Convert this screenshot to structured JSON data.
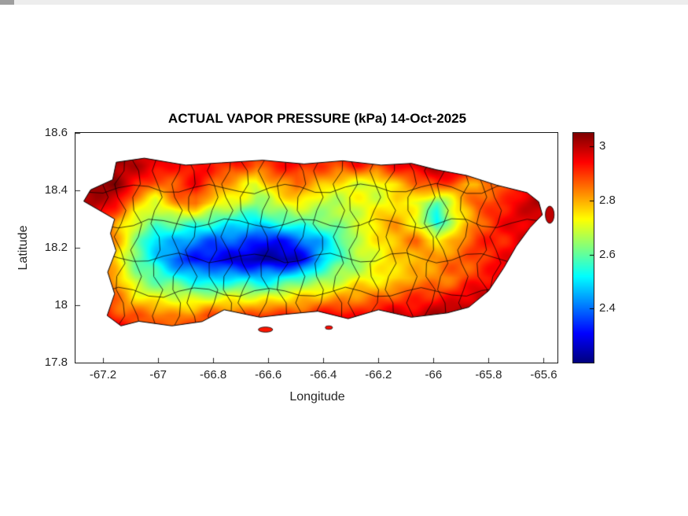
{
  "chart_data": {
    "type": "heatmap",
    "subtype": "geographic-filled-contour",
    "region": "Puerto Rico",
    "title": "ACTUAL VAPOR PRESSURE (kPa) 14-Oct-2025",
    "units": "kPa",
    "date": "14-Oct-2025",
    "xlabel": "Longitude",
    "ylabel": "Latitude",
    "xlim": [
      -67.3,
      -65.55
    ],
    "ylim": [
      17.8,
      18.6
    ],
    "grid_lines": false,
    "xticks": {
      "values": [
        -67.2,
        -67,
        -66.8,
        -66.6,
        -66.4,
        -66.2,
        -66,
        -65.8,
        -65.6
      ],
      "labels": [
        "-67.2",
        "-67",
        "-66.8",
        "-66.6",
        "-66.4",
        "-66.2",
        "-66",
        "-65.8",
        "-65.6"
      ]
    },
    "yticks": {
      "values": [
        18.6,
        18.4,
        18.2,
        18,
        17.8
      ],
      "labels": [
        "18.6",
        "18.4",
        "18.2",
        "18",
        "17.8"
      ]
    },
    "colorbar": {
      "position": "right",
      "colormap": "jet",
      "clim": [
        2.2,
        3.05
      ],
      "ticks": [
        3,
        2.8,
        2.6,
        2.4
      ],
      "labels": [
        "3",
        "2.8",
        "2.6",
        "2.4"
      ]
    },
    "municipal_boundaries": true,
    "grid": {
      "description": "vapor pressure (kPa) sampled on lon/lat grid, rows top(north) to bottom(south)",
      "lon_start": -67.3,
      "lon_step": 0.0729167,
      "lat_start": 18.55,
      "lat_step": -0.065,
      "values": [
        [
          3.0,
          3.0,
          3.0,
          3.0,
          3.0,
          2.98,
          2.97,
          2.96,
          2.97,
          2.95,
          2.96,
          2.96,
          2.95,
          2.95,
          2.96,
          2.95,
          2.97,
          3.0,
          3.0,
          3.0,
          3.0,
          3.0,
          3.0,
          3.0,
          3.0
        ],
        [
          3.02,
          3.02,
          3.03,
          3.0,
          2.96,
          2.93,
          2.95,
          2.9,
          2.93,
          2.86,
          2.92,
          2.94,
          2.9,
          2.88,
          2.93,
          2.88,
          2.94,
          2.99,
          3.01,
          3.02,
          3.0,
          2.97,
          2.96,
          2.97,
          2.97
        ],
        [
          3.03,
          3.04,
          3.05,
          2.93,
          2.84,
          2.89,
          2.95,
          2.84,
          2.79,
          2.7,
          2.8,
          2.86,
          2.79,
          2.74,
          2.71,
          2.69,
          2.77,
          2.86,
          2.9,
          2.84,
          2.8,
          2.86,
          2.92,
          2.96,
          2.96
        ],
        [
          3.05,
          3.02,
          2.94,
          2.79,
          2.71,
          2.81,
          2.86,
          2.74,
          2.69,
          2.64,
          2.7,
          2.73,
          2.69,
          2.67,
          2.7,
          2.72,
          2.76,
          2.7,
          2.59,
          2.76,
          2.86,
          2.91,
          2.96,
          3.0,
          3.0
        ],
        [
          3.0,
          2.95,
          2.84,
          2.69,
          2.59,
          2.64,
          2.59,
          2.54,
          2.54,
          2.49,
          2.55,
          2.61,
          2.6,
          2.63,
          2.7,
          2.76,
          2.8,
          2.74,
          2.49,
          2.71,
          2.86,
          2.91,
          2.96,
          3.0,
          3.0
        ],
        [
          3.0,
          2.94,
          2.79,
          2.64,
          2.49,
          2.44,
          2.41,
          2.39,
          2.37,
          2.34,
          2.32,
          2.35,
          2.45,
          2.56,
          2.66,
          2.75,
          2.81,
          2.83,
          2.76,
          2.81,
          2.89,
          2.93,
          2.96,
          3.0,
          3.0
        ],
        [
          3.0,
          2.9,
          2.79,
          2.6,
          2.49,
          2.39,
          2.31,
          2.29,
          2.27,
          2.23,
          2.21,
          2.25,
          2.41,
          2.56,
          2.66,
          2.71,
          2.76,
          2.81,
          2.81,
          2.86,
          2.9,
          2.93,
          2.96,
          3.0,
          3.0
        ],
        [
          2.96,
          2.9,
          2.8,
          2.65,
          2.59,
          2.54,
          2.49,
          2.47,
          2.49,
          2.47,
          2.5,
          2.55,
          2.61,
          2.66,
          2.7,
          2.73,
          2.76,
          2.81,
          2.83,
          2.86,
          2.91,
          2.95,
          2.98,
          3.0,
          3.0
        ],
        [
          2.96,
          2.92,
          2.85,
          2.75,
          2.71,
          2.69,
          2.67,
          2.69,
          2.71,
          2.69,
          2.72,
          2.75,
          2.78,
          2.8,
          2.82,
          2.85,
          2.88,
          2.9,
          2.92,
          2.95,
          2.98,
          3.0,
          3.01,
          3.01,
          3.01
        ],
        [
          2.96,
          2.95,
          2.91,
          2.87,
          2.84,
          2.84,
          2.85,
          2.87,
          2.9,
          2.89,
          2.9,
          2.92,
          2.92,
          2.95,
          2.95,
          2.95,
          2.98,
          3.0,
          3.01,
          3.02,
          3.02,
          3.02,
          3.02,
          3.02,
          3.02
        ],
        [
          2.98,
          2.97,
          2.95,
          2.92,
          2.9,
          2.9,
          2.91,
          2.92,
          2.94,
          2.93,
          2.94,
          2.95,
          2.95,
          2.97,
          2.97,
          2.97,
          2.99,
          3.01,
          3.02,
          3.03,
          3.03,
          3.03,
          3.03,
          3.03,
          3.03
        ]
      ]
    },
    "island_outline": [
      [
        -67.27,
        18.362
      ],
      [
        -67.245,
        18.402
      ],
      [
        -67.165,
        18.437
      ],
      [
        -67.152,
        18.498
      ],
      [
        -67.05,
        18.512
      ],
      [
        -66.9,
        18.488
      ],
      [
        -66.77,
        18.496
      ],
      [
        -66.62,
        18.505
      ],
      [
        -66.47,
        18.492
      ],
      [
        -66.33,
        18.503
      ],
      [
        -66.19,
        18.488
      ],
      [
        -66.08,
        18.494
      ],
      [
        -65.99,
        18.472
      ],
      [
        -65.88,
        18.452
      ],
      [
        -65.77,
        18.418
      ],
      [
        -65.66,
        18.392
      ],
      [
        -65.618,
        18.36
      ],
      [
        -65.605,
        18.315
      ],
      [
        -65.65,
        18.27
      ],
      [
        -65.7,
        18.205
      ],
      [
        -65.745,
        18.13
      ],
      [
        -65.8,
        18.05
      ],
      [
        -65.872,
        17.993
      ],
      [
        -65.95,
        17.973
      ],
      [
        -66.08,
        17.958
      ],
      [
        -66.2,
        17.984
      ],
      [
        -66.31,
        17.953
      ],
      [
        -66.42,
        17.979
      ],
      [
        -66.54,
        17.968
      ],
      [
        -66.63,
        17.958
      ],
      [
        -66.76,
        17.984
      ],
      [
        -66.84,
        17.943
      ],
      [
        -66.95,
        17.928
      ],
      [
        -67.07,
        17.944
      ],
      [
        -67.135,
        17.928
      ],
      [
        -67.185,
        17.964
      ],
      [
        -67.158,
        18.04
      ],
      [
        -67.183,
        18.115
      ],
      [
        -67.153,
        18.19
      ],
      [
        -67.173,
        18.25
      ],
      [
        -67.158,
        18.3
      ]
    ],
    "islets": [
      {
        "lon": -65.578,
        "lat": 18.315,
        "rx": 0.016,
        "ry": 0.03
      },
      {
        "lon": -66.61,
        "lat": 17.915,
        "rx": 0.026,
        "ry": 0.009
      },
      {
        "lon": -66.38,
        "lat": 17.922,
        "rx": 0.013,
        "ry": 0.006
      }
    ]
  }
}
